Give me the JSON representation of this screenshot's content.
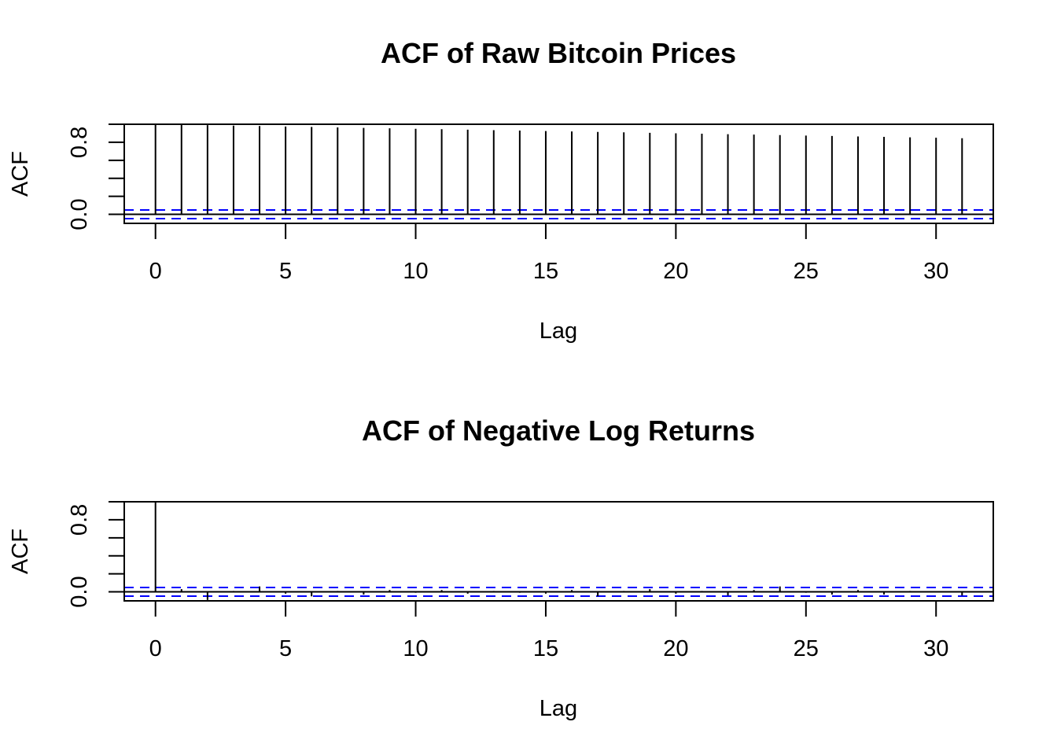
{
  "chart_data": [
    {
      "type": "bar",
      "title": "ACF of Raw Bitcoin Prices",
      "xlabel": "Lag",
      "ylabel": "ACF",
      "xlim": [
        -1.2,
        32.2
      ],
      "ylim": [
        -0.1,
        1.0
      ],
      "x_ticks": [
        {
          "value": 0,
          "label": "0"
        },
        {
          "value": 5,
          "label": "5"
        },
        {
          "value": 10,
          "label": "10"
        },
        {
          "value": 15,
          "label": "15"
        },
        {
          "value": 20,
          "label": "20"
        },
        {
          "value": 25,
          "label": "25"
        },
        {
          "value": 30,
          "label": "30"
        }
      ],
      "y_ticks": [
        0.0,
        0.2,
        0.4,
        0.6,
        0.8,
        1.0
      ],
      "y_tick_labels": [
        {
          "value": 0.0,
          "label": "0.0"
        },
        {
          "value": 0.8,
          "label": "0.8"
        }
      ],
      "lags": [
        0,
        1,
        2,
        3,
        4,
        5,
        6,
        7,
        8,
        9,
        10,
        11,
        12,
        13,
        14,
        15,
        16,
        17,
        18,
        19,
        20,
        21,
        22,
        23,
        24,
        25,
        26,
        27,
        28,
        29,
        30,
        31
      ],
      "values": [
        1.0,
        0.995,
        0.99,
        0.985,
        0.98,
        0.975,
        0.97,
        0.965,
        0.96,
        0.955,
        0.95,
        0.945,
        0.94,
        0.935,
        0.93,
        0.925,
        0.92,
        0.915,
        0.91,
        0.905,
        0.9,
        0.895,
        0.89,
        0.885,
        0.88,
        0.875,
        0.87,
        0.865,
        0.86,
        0.855,
        0.85,
        0.845
      ],
      "confidence_bound": 0.048,
      "colors": {
        "bars": "#000000",
        "confidence": "#0000ff",
        "frame": "#000000"
      }
    },
    {
      "type": "bar",
      "title": "ACF of Negative Log Returns",
      "xlabel": "Lag",
      "ylabel": "ACF",
      "xlim": [
        -1.2,
        32.2
      ],
      "ylim": [
        -0.1,
        1.0
      ],
      "x_ticks": [
        {
          "value": 0,
          "label": "0"
        },
        {
          "value": 5,
          "label": "5"
        },
        {
          "value": 10,
          "label": "10"
        },
        {
          "value": 15,
          "label": "15"
        },
        {
          "value": 20,
          "label": "20"
        },
        {
          "value": 25,
          "label": "25"
        },
        {
          "value": 30,
          "label": "30"
        }
      ],
      "y_ticks": [
        0.0,
        0.2,
        0.4,
        0.6,
        0.8,
        1.0
      ],
      "y_tick_labels": [
        {
          "value": 0.0,
          "label": "0.0"
        },
        {
          "value": 0.8,
          "label": "0.8"
        }
      ],
      "lags": [
        0,
        1,
        2,
        3,
        4,
        5,
        6,
        7,
        8,
        9,
        10,
        11,
        12,
        13,
        14,
        15,
        16,
        17,
        18,
        19,
        20,
        21,
        22,
        23,
        24,
        25,
        26,
        27,
        28,
        29,
        30,
        31
      ],
      "values": [
        1.0,
        0.03,
        -0.09,
        0.01,
        0.06,
        -0.02,
        -0.05,
        0.01,
        -0.03,
        0.02,
        -0.01,
        0.02,
        -0.02,
        0.01,
        -0.01,
        -0.02,
        0.02,
        -0.05,
        0.01,
        0.03,
        -0.02,
        0.01,
        -0.04,
        0.02,
        0.06,
        -0.01,
        -0.03,
        0.02,
        -0.03,
        0.01,
        0.0,
        -0.04
      ],
      "confidence_bound": 0.048,
      "colors": {
        "bars": "#000000",
        "confidence": "#0000ff",
        "frame": "#000000"
      }
    }
  ]
}
